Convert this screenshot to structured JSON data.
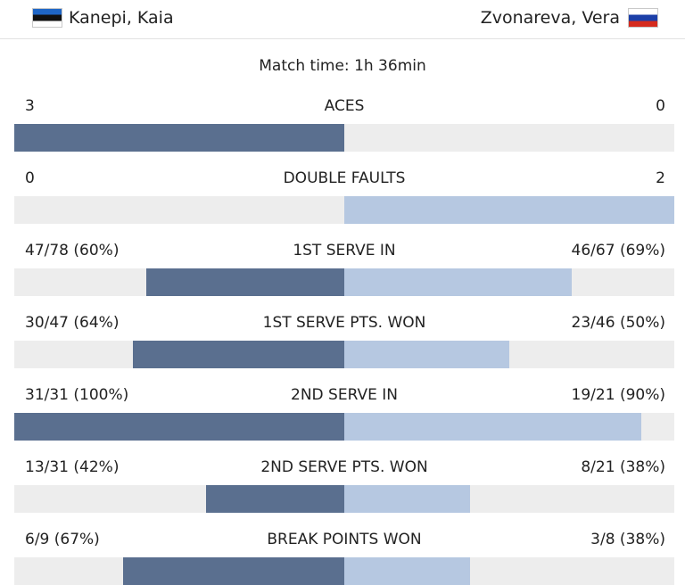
{
  "header": {
    "player_left": {
      "name": "Kanepi, Kaia",
      "flag": "estonia-flag-icon"
    },
    "player_right": {
      "name": "Zvonareva, Vera",
      "flag": "russia-flag-icon"
    }
  },
  "match_time": "Match time: 1h 36min",
  "colors": {
    "left_bar": "#5a6f8f",
    "right_bar": "#b6c8e1",
    "track": "#ededed"
  },
  "stats": [
    {
      "label": "ACES",
      "left": "3",
      "right": "0",
      "left_share": 1.0,
      "right_share": 0.0
    },
    {
      "label": "DOUBLE FAULTS",
      "left": "0",
      "right": "2",
      "left_share": 0.0,
      "right_share": 1.0
    },
    {
      "label": "1ST SERVE IN",
      "left": "47/78 (60%)",
      "right": "46/67 (69%)",
      "left_share": 0.6,
      "right_share": 0.69
    },
    {
      "label": "1ST SERVE PTS. WON",
      "left": "30/47 (64%)",
      "right": "23/46 (50%)",
      "left_share": 0.64,
      "right_share": 0.5
    },
    {
      "label": "2ND SERVE IN",
      "left": "31/31 (100%)",
      "right": "19/21 (90%)",
      "left_share": 1.0,
      "right_share": 0.9
    },
    {
      "label": "2ND SERVE PTS. WON",
      "left": "13/31 (42%)",
      "right": "8/21 (38%)",
      "left_share": 0.42,
      "right_share": 0.38
    },
    {
      "label": "BREAK POINTS WON",
      "left": "6/9 (67%)",
      "right": "3/8 (38%)",
      "left_share": 0.67,
      "right_share": 0.38
    }
  ]
}
